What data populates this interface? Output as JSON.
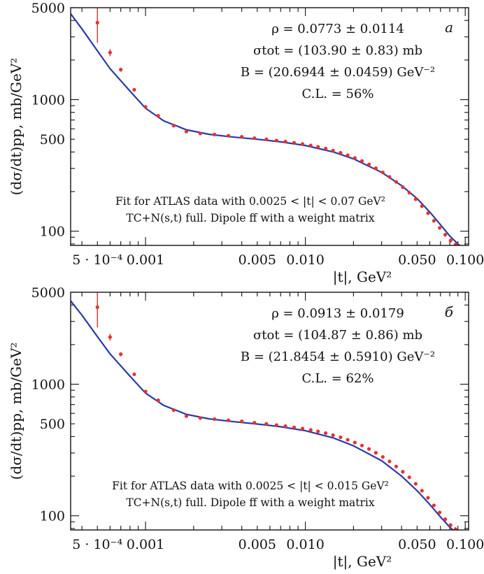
{
  "chart_data": [
    {
      "type": "line",
      "panel_letter": "a",
      "x_scale": "log",
      "y_scale": "log",
      "xlim": [
        0.00034,
        0.105
      ],
      "ylim": [
        78,
        5000
      ],
      "xlabel": "|t|, GeV²",
      "ylabel": "(dσ/dt)pp, mb/GeV²",
      "x_tick_labels": [
        {
          "value": 0.0005,
          "label": "5 · 10⁻⁴"
        },
        {
          "value": 0.001,
          "label": "0.001"
        },
        {
          "value": 0.005,
          "label": "0.005"
        },
        {
          "value": 0.01,
          "label": "0.010"
        },
        {
          "value": 0.05,
          "label": "0.050"
        },
        {
          "value": 0.1,
          "label": "0.100"
        }
      ],
      "y_tick_labels": [
        {
          "value": 5000,
          "label": "5000"
        },
        {
          "value": 1000,
          "label": "1000"
        },
        {
          "value": 500,
          "label": "500"
        },
        {
          "value": 100,
          "label": "100"
        }
      ],
      "annotations": [
        "ρ = 0.0773 ± 0.0114",
        "σtot = (103.90 ± 0.83) mb",
        "B = (20.6944 ± 0.0459) GeV⁻²",
        "C.L. = 56%"
      ],
      "notes": [
        "Fit for ATLAS data with 0.0025 < |t| < 0.07 GeV²",
        "TC+N(s,t) full. Dipole ff with a weight matrix"
      ],
      "colors": {
        "fit": "#2b3aa8",
        "data": "#e8312d"
      },
      "series": [
        {
          "kind": "fit_curve",
          "x": [
            0.00034,
            0.0004,
            0.0005,
            0.0006,
            0.0008,
            0.001,
            0.0013,
            0.0018,
            0.0025,
            0.0035,
            0.005,
            0.007,
            0.01,
            0.015,
            0.02,
            0.03,
            0.04,
            0.05,
            0.06,
            0.07,
            0.08,
            0.09,
            0.1
          ],
          "y": [
            4500,
            3450,
            2350,
            1720,
            1160,
            860,
            690,
            590,
            545,
            520,
            500,
            478,
            448,
            400,
            355,
            280,
            222,
            177,
            140,
            112,
            92,
            80,
            72
          ]
        },
        {
          "kind": "data_points",
          "x": [
            0.0005,
            0.0006,
            0.0007,
            0.00085,
            0.001,
            0.0012,
            0.0015,
            0.0018,
            0.0022,
            0.0027,
            0.0033,
            0.004,
            0.0048,
            0.0057,
            0.0066,
            0.0075,
            0.0085,
            0.0096,
            0.0108,
            0.012,
            0.0134,
            0.0149,
            0.0166,
            0.0184,
            0.0204,
            0.0226,
            0.025,
            0.0276,
            0.0305,
            0.0336,
            0.037,
            0.0407,
            0.0447,
            0.049,
            0.0536,
            0.0585,
            0.0637,
            0.0692,
            0.075,
            0.081,
            0.087,
            0.093
          ],
          "y": [
            3850,
            2280,
            1690,
            1190,
            880,
            755,
            635,
            572,
            553,
            543,
            532,
            522,
            510,
            500,
            489,
            480,
            470,
            460,
            449,
            438,
            425,
            410,
            395,
            378,
            360,
            342,
            322,
            301,
            280,
            259,
            237,
            216,
            196,
            175,
            155,
            137,
            120,
            106,
            94,
            85,
            79,
            74
          ],
          "yerr": [
            1150,
            140,
            60,
            35,
            22,
            15,
            11,
            9,
            8,
            7,
            7,
            6,
            6,
            6,
            5,
            5,
            5,
            5,
            5,
            5,
            5,
            5,
            4,
            4,
            4,
            4,
            4,
            4,
            4,
            3,
            3,
            3,
            3,
            3,
            3,
            3,
            3,
            3,
            3,
            3,
            3,
            3
          ]
        }
      ]
    },
    {
      "type": "line",
      "panel_letter": "б",
      "x_scale": "log",
      "y_scale": "log",
      "xlim": [
        0.00034,
        0.105
      ],
      "ylim": [
        78,
        5000
      ],
      "xlabel": "|t|, GeV²",
      "ylabel": "(dσ/dt)pp, mb/GeV²",
      "x_tick_labels": [
        {
          "value": 0.0005,
          "label": "5 · 10⁻⁴"
        },
        {
          "value": 0.001,
          "label": "0.001"
        },
        {
          "value": 0.005,
          "label": "0.005"
        },
        {
          "value": 0.01,
          "label": "0.010"
        },
        {
          "value": 0.05,
          "label": "0.050"
        },
        {
          "value": 0.1,
          "label": "0.100"
        }
      ],
      "y_tick_labels": [
        {
          "value": 5000,
          "label": "5000"
        },
        {
          "value": 1000,
          "label": "1000"
        },
        {
          "value": 500,
          "label": "500"
        },
        {
          "value": 100,
          "label": "100"
        }
      ],
      "annotations": [
        "ρ = 0.0913 ± 0.0179",
        "σtot = (104.87 ± 0.86) mb",
        "B = (21.8454 ± 0.5910) GeV⁻²",
        "C.L. = 62%"
      ],
      "notes": [
        "Fit for ATLAS data with 0.0025 < |t| < 0.015 GeV²",
        "TC+N(s,t) full. Dipole ff with a weight matrix"
      ],
      "colors": {
        "fit": "#2b3aa8",
        "data": "#e8312d"
      },
      "series": [
        {
          "kind": "fit_curve",
          "x": [
            0.00034,
            0.0004,
            0.0005,
            0.0006,
            0.0008,
            0.001,
            0.0013,
            0.0018,
            0.0025,
            0.0035,
            0.005,
            0.007,
            0.01,
            0.015,
            0.02,
            0.03,
            0.04,
            0.05,
            0.06,
            0.07,
            0.08,
            0.09,
            0.1
          ],
          "y": [
            4300,
            3350,
            2300,
            1700,
            1150,
            855,
            690,
            590,
            545,
            520,
            498,
            475,
            443,
            390,
            340,
            262,
            200,
            155,
            122,
            98,
            82,
            72,
            66
          ]
        },
        {
          "kind": "data_points",
          "x": [
            0.0005,
            0.0006,
            0.0007,
            0.00085,
            0.001,
            0.0012,
            0.0015,
            0.0018,
            0.0022,
            0.0027,
            0.0033,
            0.004,
            0.0048,
            0.0057,
            0.0066,
            0.0075,
            0.0085,
            0.0096,
            0.0108,
            0.012,
            0.0134,
            0.0149,
            0.0166,
            0.0184,
            0.0204,
            0.0226,
            0.025,
            0.0276,
            0.0305,
            0.0336,
            0.037,
            0.0407,
            0.0447,
            0.049,
            0.0536,
            0.0585,
            0.0637,
            0.0692,
            0.075,
            0.081,
            0.087,
            0.093
          ],
          "y": [
            3850,
            2280,
            1690,
            1190,
            880,
            755,
            635,
            572,
            553,
            543,
            532,
            522,
            510,
            500,
            489,
            480,
            470,
            460,
            449,
            438,
            425,
            410,
            395,
            378,
            360,
            342,
            322,
            301,
            280,
            259,
            237,
            216,
            196,
            175,
            155,
            137,
            120,
            106,
            94,
            85,
            79,
            74
          ],
          "yerr": [
            1150,
            140,
            60,
            35,
            22,
            15,
            11,
            9,
            8,
            7,
            7,
            6,
            6,
            6,
            5,
            5,
            5,
            5,
            5,
            5,
            5,
            5,
            4,
            4,
            4,
            4,
            4,
            4,
            4,
            3,
            3,
            3,
            3,
            3,
            3,
            3,
            3,
            3,
            3,
            3,
            3,
            3
          ]
        }
      ]
    }
  ]
}
